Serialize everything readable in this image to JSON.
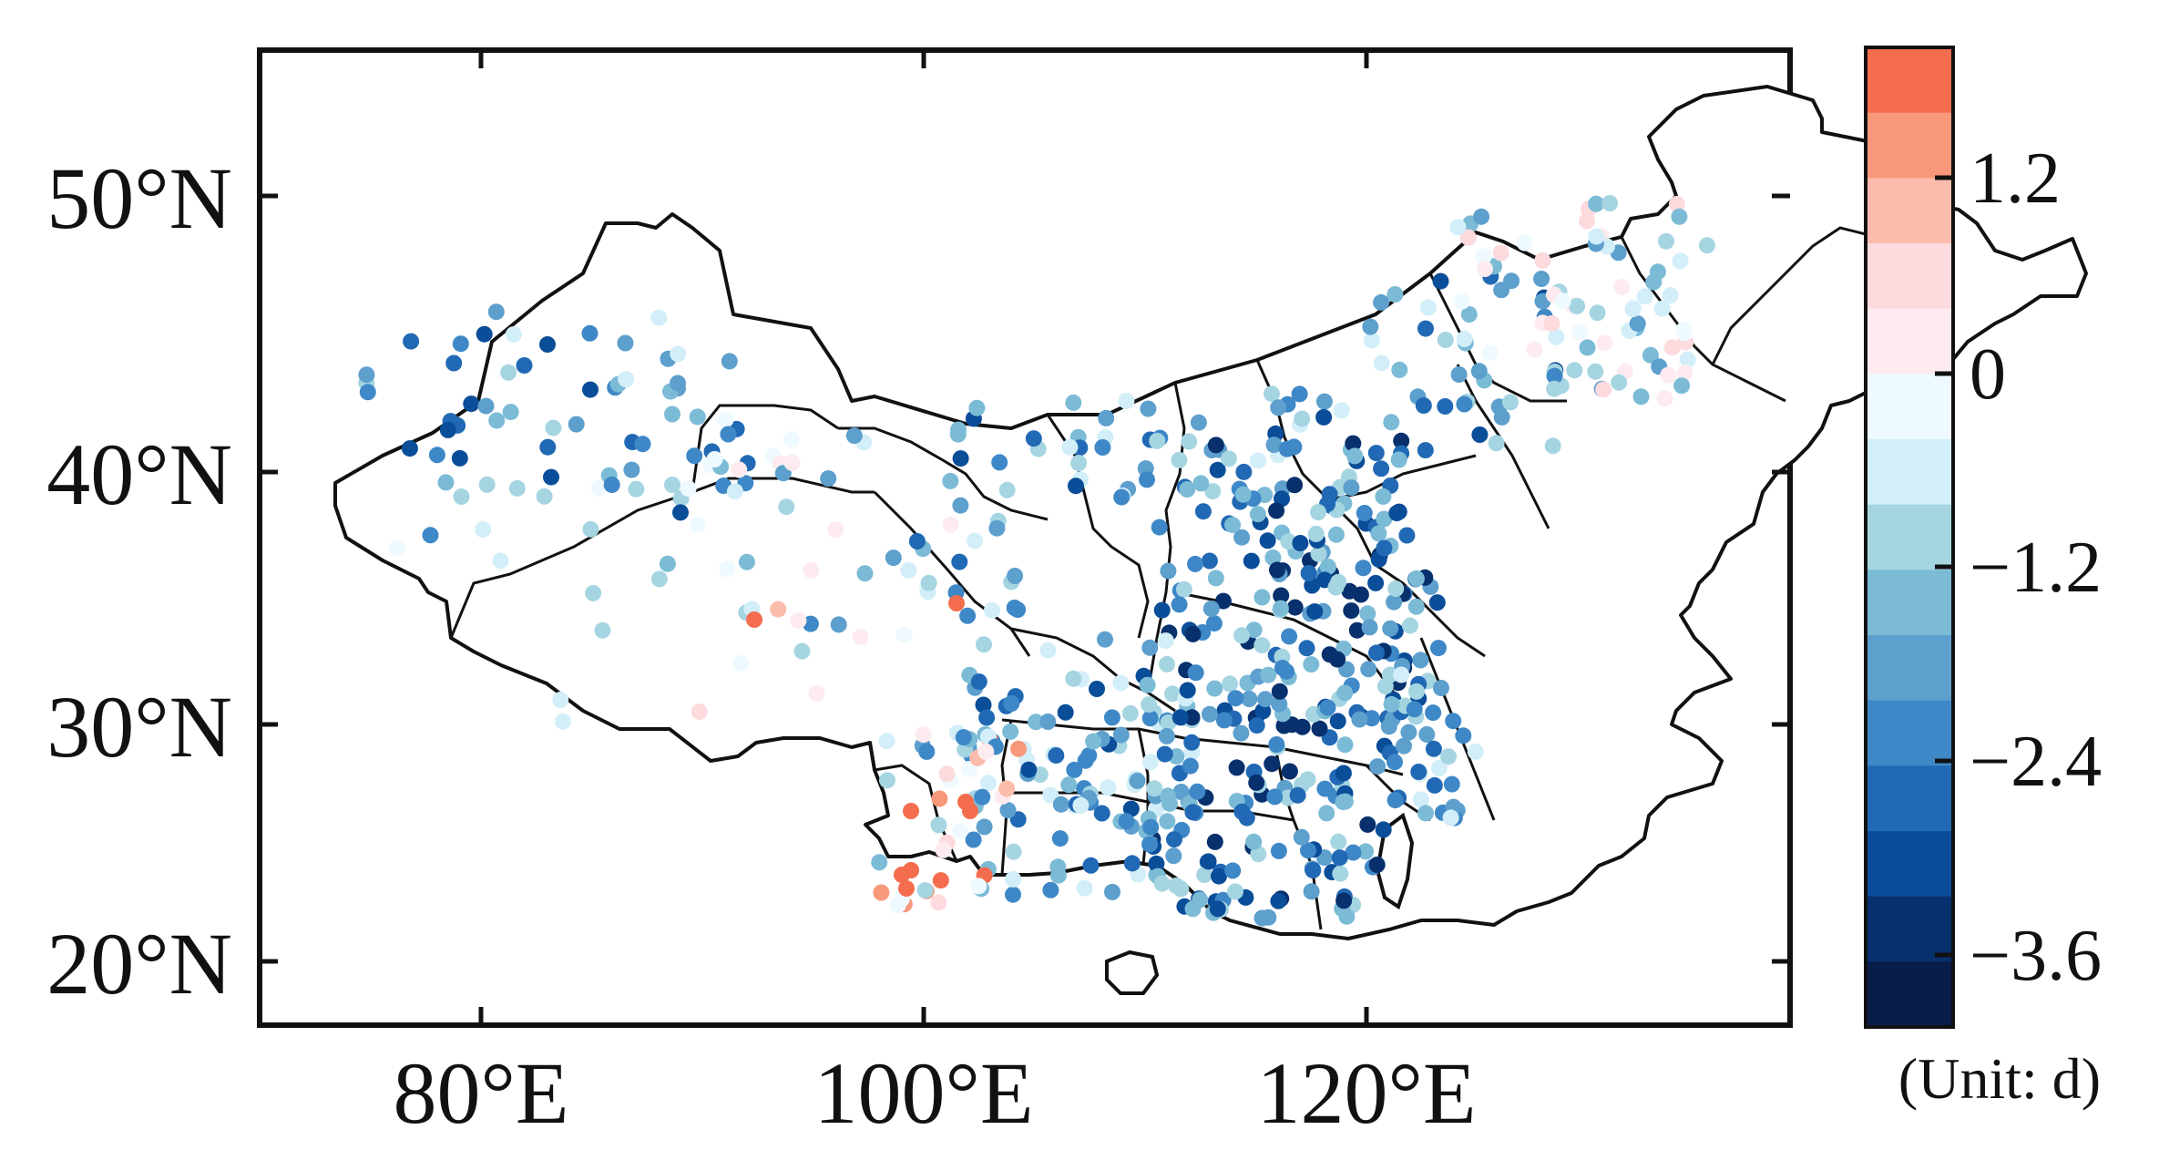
{
  "map": {
    "x_tick_labels": [
      "80°E",
      "100°E",
      "120°E"
    ],
    "x_tick_values": [
      80,
      100,
      120
    ],
    "y_tick_labels": [
      "50°N",
      "40°N",
      "30°N",
      "20°N"
    ],
    "y_tick_values": [
      50,
      40,
      30,
      20
    ]
  },
  "colorbar": {
    "tick_labels": [
      "1.2",
      "0",
      "−1.2",
      "−2.4",
      "−3.6"
    ],
    "tick_values": [
      1.2,
      0,
      -1.2,
      -2.4,
      -3.6
    ],
    "unit_label": "(Unit: d)",
    "colors": [
      "#f46d4e",
      "#f8987a",
      "#fbbcab",
      "#fcdadd",
      "#fdebef",
      "#eefaff",
      "#d2eef8",
      "#a6d5e2",
      "#7bbbd6",
      "#5d9fcd",
      "#3e88c7",
      "#2169b4",
      "#0a4d98",
      "#07306d",
      "#081d48"
    ]
  },
  "chart_data": {
    "type": "scatter",
    "title": "",
    "xlabel": "",
    "ylabel": "",
    "x_range_deg_E": [
      70,
      140
    ],
    "y_range_deg_N": [
      15,
      55
    ],
    "value_range": [
      -4.2,
      1.8
    ],
    "grid": false,
    "legend": "colorbar-right",
    "stations_note": "Stations across China coloured by change in days; most values negative (blue), few positive (red) in southwest Yunnan and Tibet."
  }
}
